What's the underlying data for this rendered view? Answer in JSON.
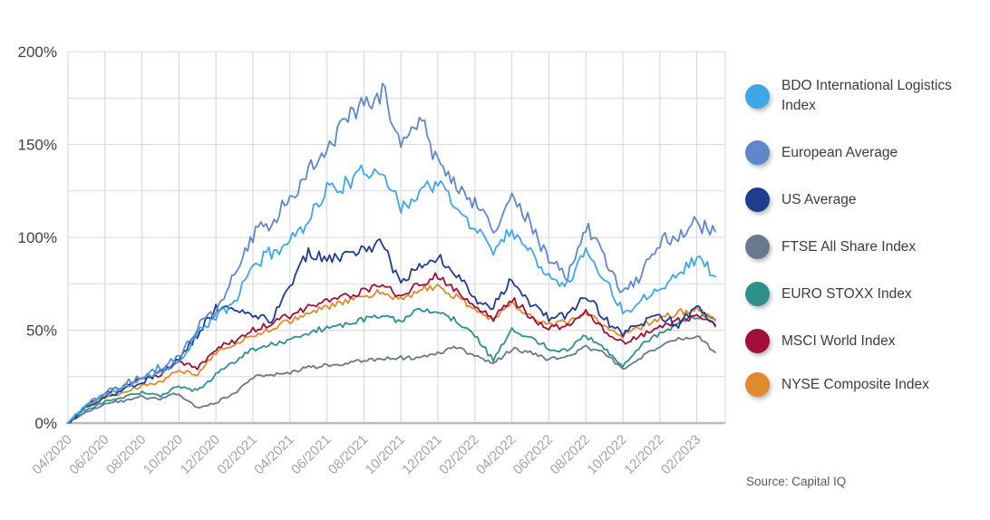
{
  "chart_data": {
    "type": "line",
    "title": "",
    "x_tick_labels": [
      "04/2020",
      "06/2020",
      "08/2020",
      "10/2020",
      "12/2020",
      "02/2021",
      "04/2021",
      "06/2021",
      "08/2021",
      "10/2021",
      "12/2021",
      "02/2022",
      "04/2022",
      "06/2022",
      "08/2022",
      "10/2022",
      "12/2022",
      "02/2023"
    ],
    "y_tick_labels": [
      "0%",
      "50%",
      "100%",
      "150%",
      "200%"
    ],
    "ylim": [
      0,
      200
    ],
    "y_gridline_step": 25,
    "grid": true,
    "legend_position": "right",
    "series": [
      {
        "name": "BDO International Logistics Index",
        "color": "#3FA6E8",
        "values": [
          0,
          10,
          15,
          19,
          24,
          28,
          33,
          48,
          57,
          65,
          85,
          92,
          98,
          110,
          126,
          128,
          135,
          137,
          115,
          125,
          130,
          115,
          106,
          93,
          105,
          92,
          80,
          75,
          93,
          78,
          60,
          66,
          74,
          80,
          90,
          79
        ]
      },
      {
        "name": "European Average",
        "color": "#5E88C9",
        "values": [
          0,
          10,
          16,
          20,
          25,
          30,
          36,
          52,
          60,
          80,
          100,
          108,
          122,
          135,
          150,
          162,
          172,
          178,
          148,
          164,
          142,
          128,
          118,
          105,
          122,
          108,
          88,
          78,
          107,
          88,
          70,
          80,
          98,
          100,
          107,
          103
        ]
      },
      {
        "name": "US Average",
        "color": "#1F3D8F",
        "values": [
          0,
          9,
          14,
          18,
          22,
          28,
          35,
          48,
          62,
          60,
          58,
          55,
          75,
          92,
          88,
          90,
          93,
          97,
          74,
          85,
          90,
          80,
          68,
          62,
          78,
          64,
          56,
          58,
          70,
          56,
          48,
          54,
          58,
          53,
          62,
          53
        ]
      },
      {
        "name": "FTSE All Share Index",
        "color": "#68788E",
        "values": [
          0,
          6,
          10,
          12,
          14,
          13,
          16,
          8,
          11,
          16,
          25,
          26,
          27,
          30,
          31,
          32,
          34,
          35,
          35,
          35,
          38,
          41,
          36,
          32,
          40,
          38,
          34,
          36,
          41,
          38,
          29,
          35,
          42,
          45,
          47,
          38
        ]
      },
      {
        "name": "EURO STOXX Index",
        "color": "#2E908A",
        "values": [
          0,
          7,
          12,
          14,
          16,
          15,
          20,
          17,
          26,
          33,
          40,
          42,
          45,
          48,
          52,
          53,
          56,
          58,
          54,
          61,
          60,
          55,
          47,
          34,
          50,
          46,
          40,
          39,
          47,
          40,
          31,
          42,
          48,
          54,
          58,
          56
        ]
      },
      {
        "name": "MSCI World Index",
        "color": "#A01038",
        "values": [
          0,
          10,
          16,
          20,
          24,
          26,
          33,
          30,
          40,
          44,
          50,
          54,
          58,
          62,
          66,
          68,
          71,
          74,
          68,
          75,
          79,
          71,
          62,
          56,
          67,
          57,
          51,
          52,
          60,
          50,
          43,
          48,
          52,
          55,
          58,
          52
        ]
      },
      {
        "name": "NYSE Composite Index",
        "color": "#E08A2E",
        "values": [
          0,
          9,
          14,
          17,
          20,
          22,
          28,
          26,
          38,
          42,
          47,
          51,
          55,
          59,
          63,
          65,
          68,
          71,
          66,
          71,
          74,
          68,
          61,
          56,
          64,
          58,
          53,
          54,
          60,
          52,
          47,
          52,
          56,
          60,
          61,
          55
        ]
      }
    ]
  },
  "source": {
    "label": "Source: Capital IQ"
  },
  "colors": {
    "background": "#FFFFFF",
    "gridline": "#D9D9D9",
    "axis_line": "#B7BCC3",
    "y_label": "#414141",
    "x_label": "#A3A3A3",
    "legend_text": "#3C3C3C",
    "source_text": "#595959"
  }
}
